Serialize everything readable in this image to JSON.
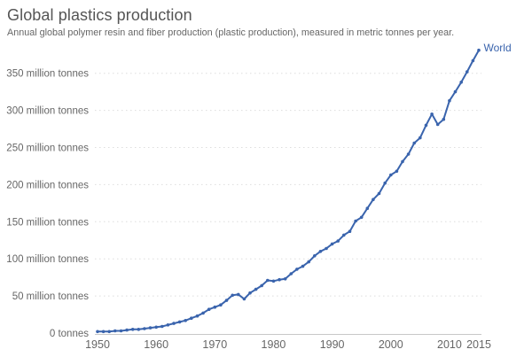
{
  "header": {
    "title": "Global plastics production",
    "subtitle": "Annual global polymer resin and fiber production (plastic production), measured in metric tonnes per year."
  },
  "colors": {
    "line": "#3a64ad",
    "series_label": "#3a64ad",
    "gridline": "#dddddd",
    "zero_axis": "#c8c8c8",
    "title": "#555555",
    "subtitle": "#666666",
    "tick_label": "#666666",
    "background": "#ffffff"
  },
  "chart_data": {
    "type": "line",
    "title": "Global plastics production",
    "subtitle": "Annual global polymer resin and fiber production (plastic production), measured in metric tonnes per year.",
    "xlabel": "",
    "ylabel": "metric tonnes per year",
    "unit": "million tonnes",
    "xlim": [
      1950,
      2015
    ],
    "ylim": [
      0,
      350
    ],
    "grid": "horizontal-dotted",
    "legend_position": "end-of-line-label",
    "markers": true,
    "x_ticks": [
      1950,
      1960,
      1970,
      1980,
      1990,
      2000,
      2010,
      2015
    ],
    "y_ticks": [
      {
        "value": 0,
        "label": "0 tonnes"
      },
      {
        "value": 50,
        "label": "50 million tonnes"
      },
      {
        "value": 100,
        "label": "100 million tonnes"
      },
      {
        "value": 150,
        "label": "150 million tonnes"
      },
      {
        "value": 200,
        "label": "200 million tonnes"
      },
      {
        "value": 250,
        "label": "250 million tonnes"
      },
      {
        "value": 300,
        "label": "300 million tonnes"
      },
      {
        "value": 350,
        "label": "350 million tonnes"
      }
    ],
    "series": [
      {
        "name": "World",
        "color": "#3a64ad",
        "years": [
          1950,
          1951,
          1952,
          1953,
          1954,
          1955,
          1956,
          1957,
          1958,
          1959,
          1960,
          1961,
          1962,
          1963,
          1964,
          1965,
          1966,
          1967,
          1968,
          1969,
          1970,
          1971,
          1972,
          1973,
          1974,
          1975,
          1976,
          1977,
          1978,
          1979,
          1980,
          1981,
          1982,
          1983,
          1984,
          1985,
          1986,
          1987,
          1988,
          1989,
          1990,
          1991,
          1992,
          1993,
          1994,
          1995,
          1996,
          1997,
          1998,
          1999,
          2000,
          2001,
          2002,
          2003,
          2004,
          2005,
          2006,
          2007,
          2008,
          2009,
          2010,
          2011,
          2012,
          2013,
          2014,
          2015
        ],
        "values": [
          2,
          2,
          2,
          3,
          3,
          4,
          5,
          5,
          6,
          7,
          8,
          9,
          11,
          13,
          15,
          17,
          20,
          23,
          27,
          32,
          35,
          38,
          44,
          51,
          52,
          46,
          54,
          59,
          64,
          71,
          70,
          72,
          73,
          80,
          86,
          90,
          96,
          104,
          110,
          114,
          120,
          124,
          132,
          137,
          151,
          156,
          168,
          180,
          188,
          202,
          213,
          218,
          231,
          241,
          256,
          263,
          280,
          295,
          281,
          288,
          313,
          325,
          338,
          352,
          367,
          381
        ]
      }
    ]
  }
}
